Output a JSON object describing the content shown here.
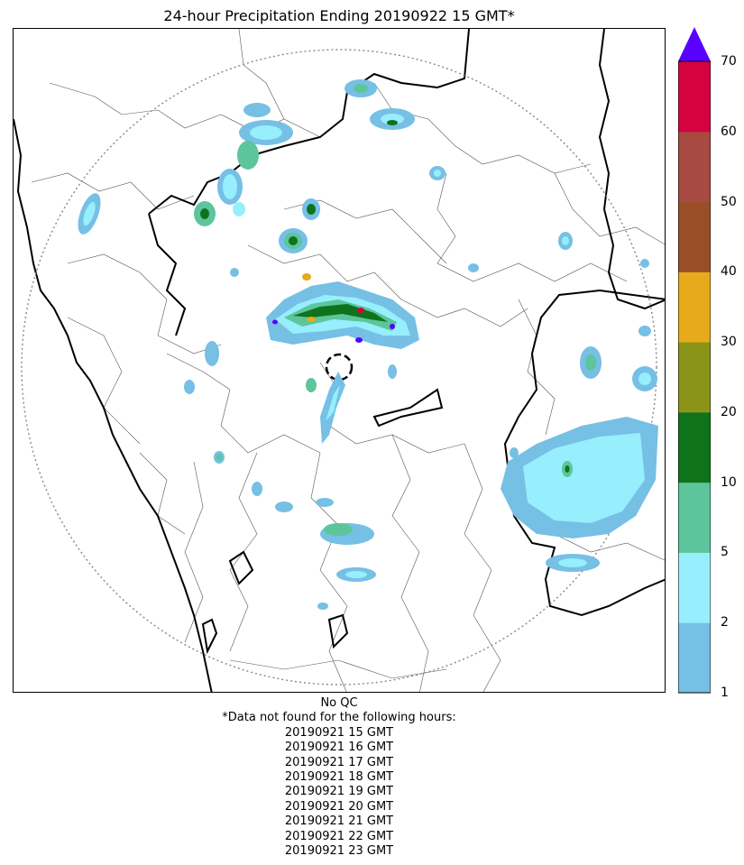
{
  "title": "24-hour Precipitation Ending 20190922 15 GMT*",
  "colorbar": {
    "levels": [
      "1",
      "2",
      "5",
      "10",
      "20",
      "30",
      "40",
      "50",
      "60",
      "70"
    ],
    "colors": [
      "#76bfe5",
      "#97eefc",
      "#5cc59c",
      "#0e731b",
      "#8a9419",
      "#e6aa1a",
      "#9a4e27",
      "#a74a41",
      "#d4023f"
    ],
    "extend_color": "#5a00ff"
  },
  "notes": {
    "qc": "No QC",
    "missing_header": "*Data not found for the following hours:",
    "missing_hours": [
      "20190921 15 GMT",
      "20190921 16 GMT",
      "20190921 17 GMT",
      "20190921 18 GMT",
      "20190921 19 GMT",
      "20190921 20 GMT",
      "20190921 21 GMT",
      "20190921 22 GMT",
      "20190921 23 GMT"
    ]
  }
}
